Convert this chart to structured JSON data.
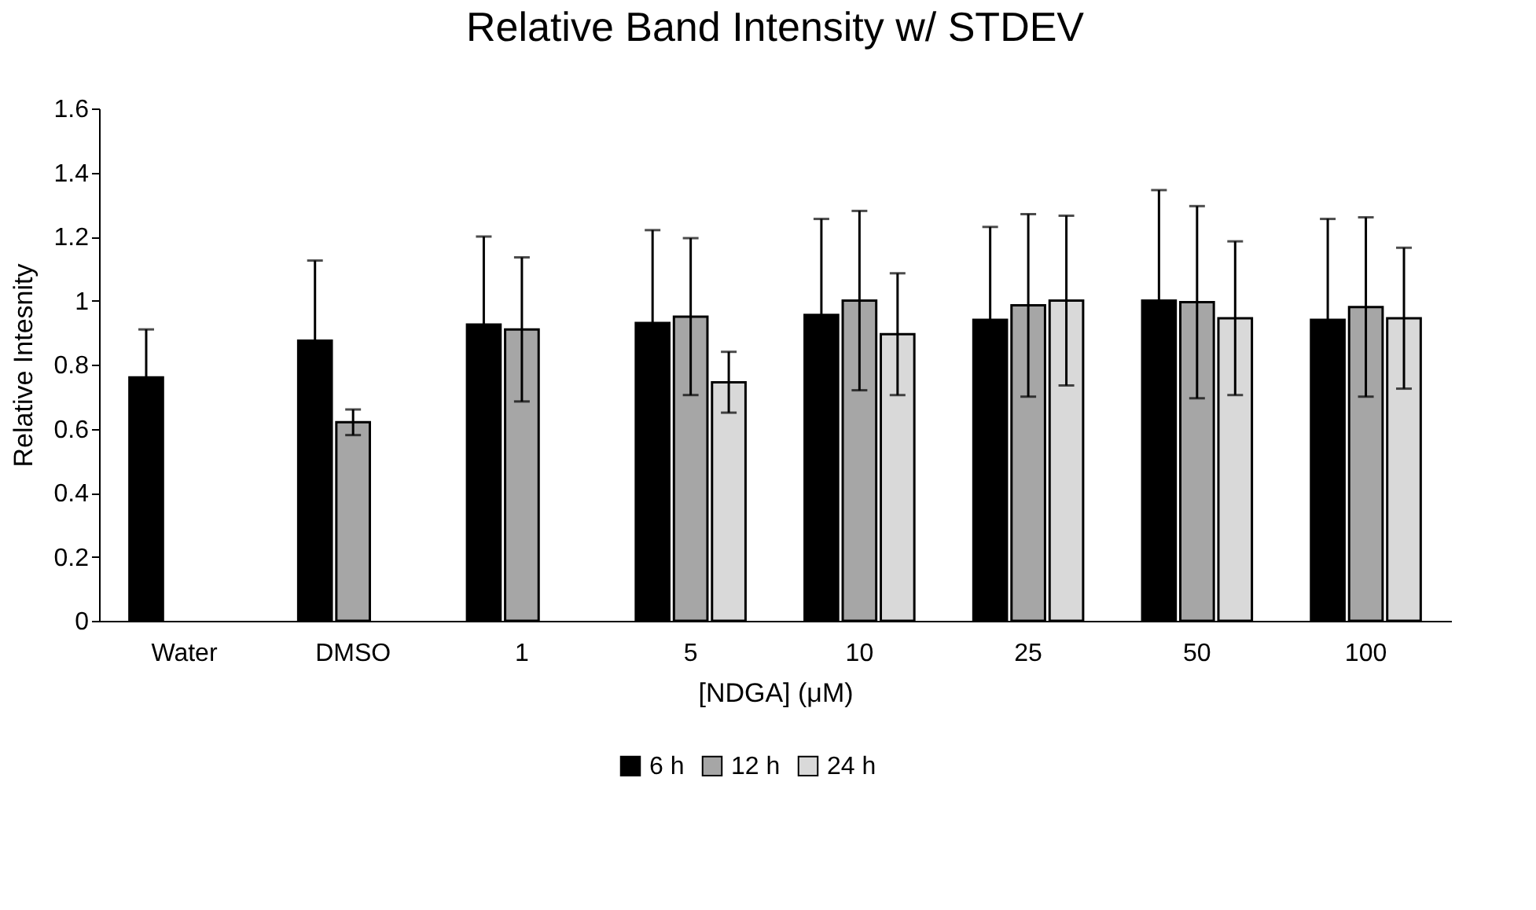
{
  "chart_data": {
    "type": "bar",
    "title": "Relative Band Intensity w/ STDEV",
    "xlabel": "[NDGA] (μM)",
    "ylabel": "Relative Intesnity",
    "categories": [
      "Water",
      "DMSO",
      "1",
      "5",
      "10",
      "25",
      "50",
      "100"
    ],
    "series": [
      {
        "name": "6 h",
        "color": "#000000",
        "values": [
          0.76,
          0.875,
          0.925,
          0.93,
          0.955,
          0.94,
          1.0,
          0.94
        ],
        "errors": [
          0.15,
          0.25,
          0.275,
          0.29,
          0.3,
          0.29,
          0.345,
          0.315
        ]
      },
      {
        "name": "12 h",
        "color": "#a6a6a6",
        "values": [
          null,
          0.62,
          0.91,
          0.95,
          1.0,
          0.985,
          0.995,
          0.98
        ],
        "errors": [
          null,
          0.04,
          0.225,
          0.245,
          0.28,
          0.285,
          0.3,
          0.28
        ]
      },
      {
        "name": "24 h",
        "color": "#d9d9d9",
        "values": [
          null,
          null,
          null,
          0.745,
          0.895,
          1.0,
          0.945,
          0.945
        ],
        "errors": [
          null,
          null,
          null,
          0.095,
          0.19,
          0.265,
          0.24,
          0.22
        ]
      }
    ],
    "ylim": [
      0,
      1.6
    ],
    "yticks": [
      0,
      0.2,
      0.4,
      0.6,
      0.8,
      1,
      1.2,
      1.4,
      1.6
    ],
    "grid": false,
    "legend": "bottom"
  }
}
